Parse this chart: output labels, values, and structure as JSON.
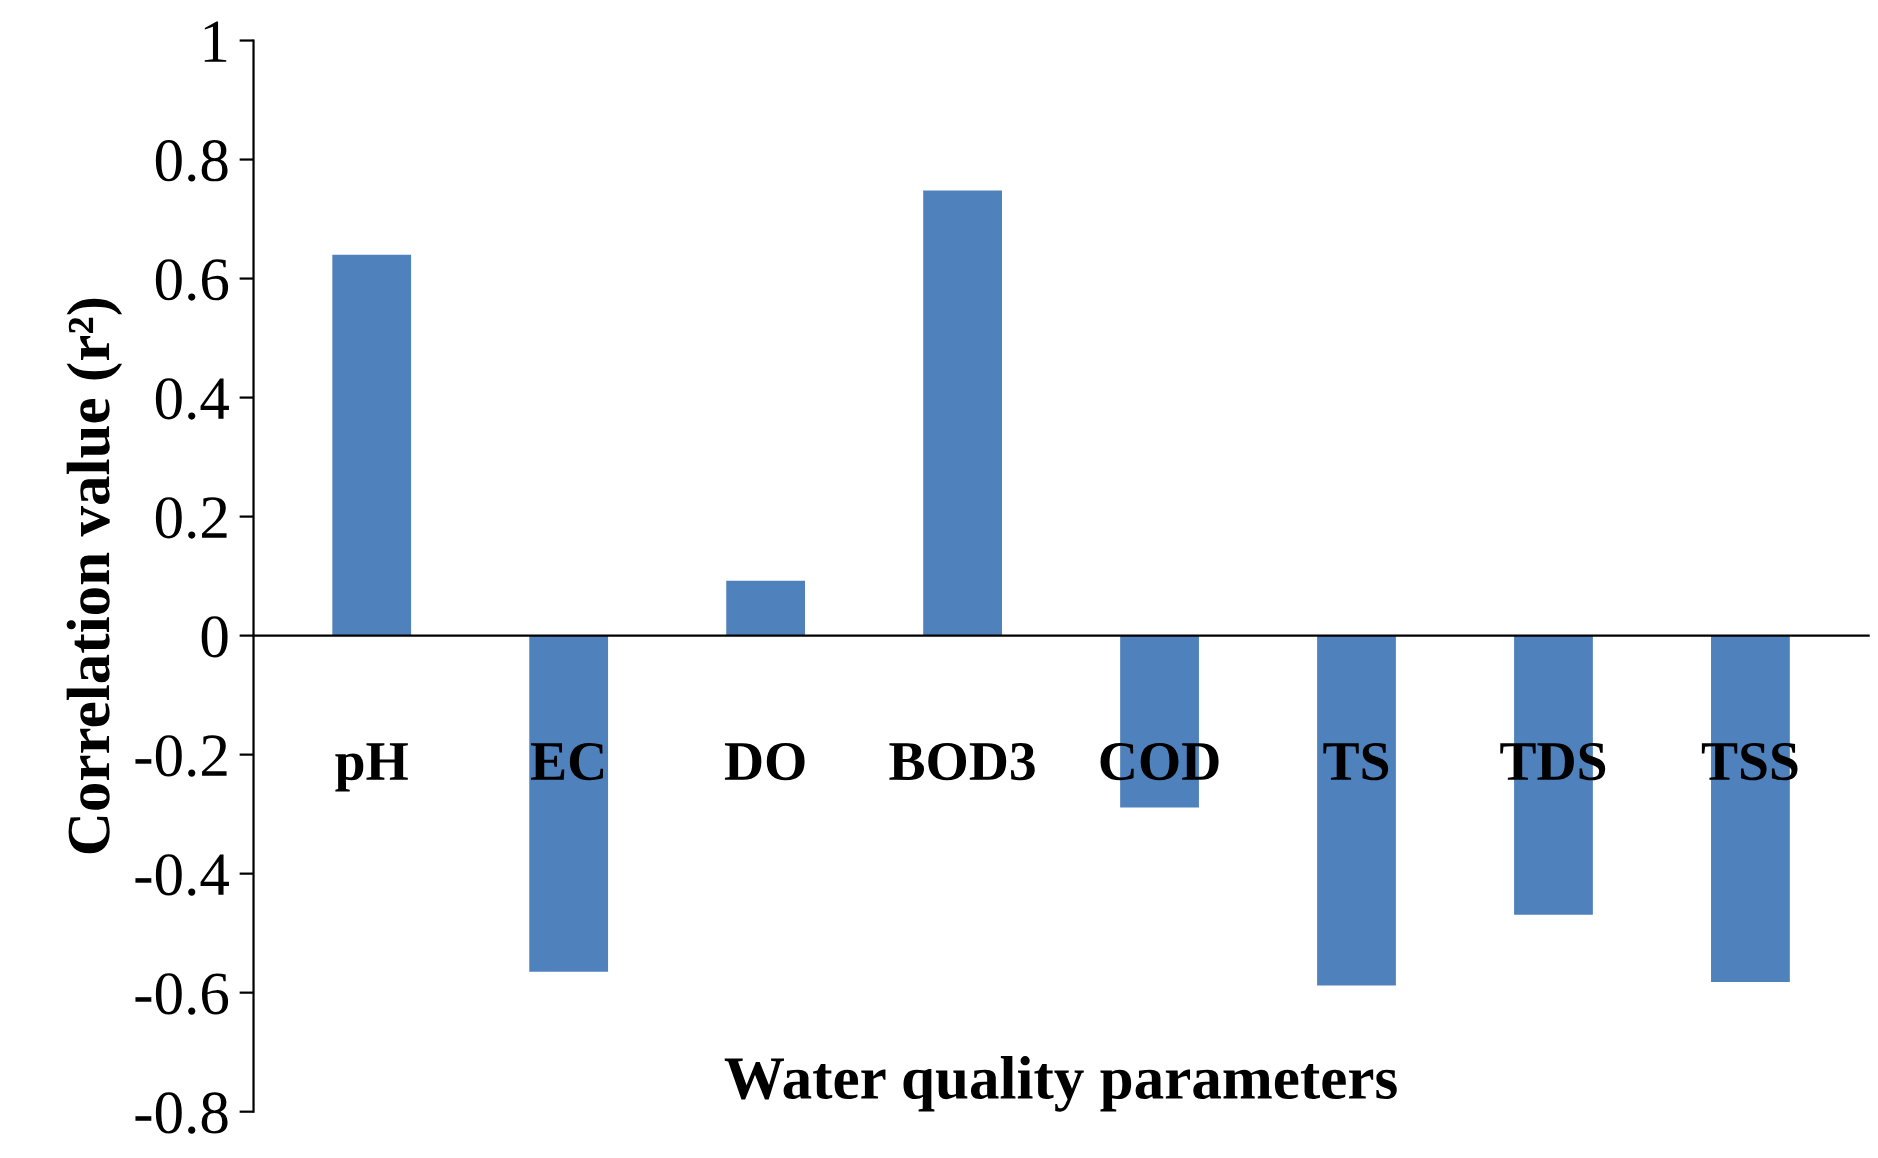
{
  "chart_data": {
    "type": "bar",
    "xlabel": "Water quality parameters",
    "ylabel": "Correlation value (r²)",
    "categories": [
      "pH",
      "EC",
      "DO",
      "BOD3",
      "COD",
      "TS",
      "TDS",
      "TSS"
    ],
    "values": [
      0.64,
      -0.565,
      0.092,
      0.748,
      -0.289,
      -0.588,
      -0.469,
      -0.582
    ],
    "color": "#4f81bd",
    "ylim": [
      -0.8,
      1
    ],
    "yticks": [
      -0.8,
      -0.6,
      -0.4,
      -0.2,
      0,
      0.2,
      0.4,
      0.6,
      0.8,
      1
    ],
    "grid": false
  }
}
